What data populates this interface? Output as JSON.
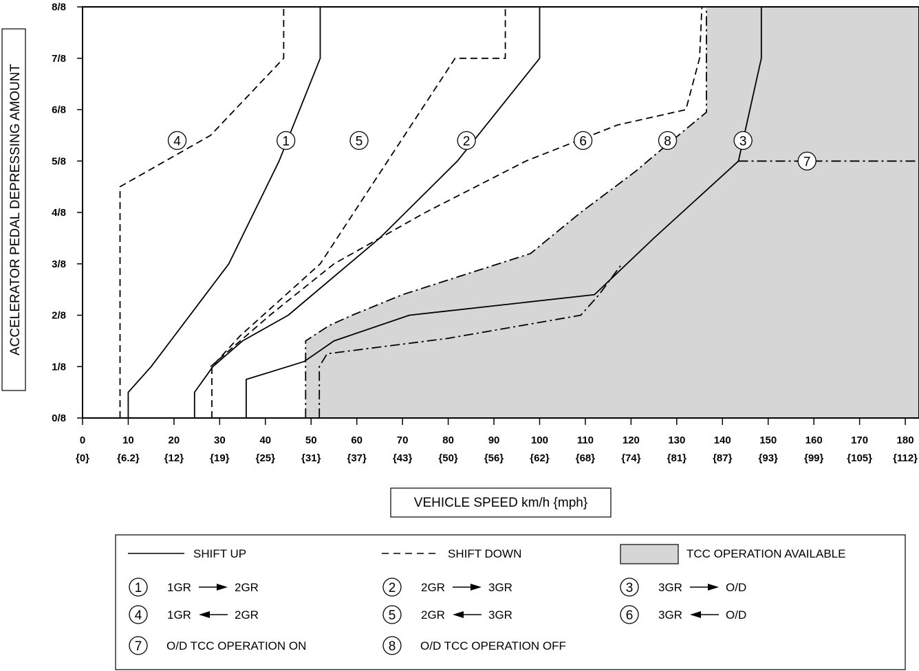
{
  "chart_data": {
    "type": "line",
    "title": "",
    "xlabel": "VEHICLE SPEED  km/h {mph}",
    "ylabel": "ACCELERATOR PEDAL DEPRESSING AMOUNT",
    "xlim": [
      0,
      183
    ],
    "ylim": [
      0,
      8
    ],
    "x_ticks": [
      0,
      10,
      20,
      30,
      40,
      50,
      60,
      70,
      80,
      90,
      100,
      110,
      120,
      130,
      140,
      150,
      160,
      170,
      180
    ],
    "x_tick_labels": [
      "0",
      "10",
      "20",
      "30",
      "40",
      "50",
      "60",
      "70",
      "80",
      "90",
      "100",
      "110",
      "120",
      "130",
      "140",
      "150",
      "160",
      "170",
      "180"
    ],
    "x_tick_sublabels": [
      "{0}",
      "{6.2}",
      "{12}",
      "{19}",
      "{25}",
      "{31}",
      "{37}",
      "{43}",
      "{50}",
      "{56}",
      "{62}",
      "{68}",
      "{74}",
      "{81}",
      "{87}",
      "{93}",
      "{99}",
      "{105}",
      "{112}"
    ],
    "y_ticks": [
      0,
      1,
      2,
      3,
      4,
      5,
      6,
      7,
      8
    ],
    "y_tick_labels": [
      "0/8",
      "1/8",
      "2/8",
      "3/8",
      "4/8",
      "5/8",
      "6/8",
      "7/8",
      "8/8"
    ],
    "tcc_region": {
      "name": "TCC OPERATION AVAILABLE",
      "color": "#d6d6d6",
      "boundary_x": [
        48.8,
        48.8,
        54,
        59,
        70,
        98,
        109,
        121,
        129,
        136.5,
        136.5,
        183,
        183
      ],
      "boundary_y": [
        0,
        1.5,
        1.8,
        2.0,
        2.4,
        3.2,
        4.0,
        4.8,
        5.4,
        5.95,
        8,
        8,
        0
      ]
    },
    "series": [
      {
        "name": "1GR → 2GR",
        "label": "1",
        "style": "solid",
        "x": [
          10,
          10,
          15,
          32,
          43,
          52,
          52
        ],
        "y": [
          0,
          0.5,
          1,
          3,
          5,
          7,
          8
        ],
        "marker_at": [
          44.5,
          5.4
        ]
      },
      {
        "name": "2GR → 3GR",
        "label": "2",
        "style": "solid",
        "x": [
          24.5,
          24.5,
          28.5,
          35,
          45,
          65,
          82,
          100,
          100
        ],
        "y": [
          0,
          0.5,
          1,
          1.5,
          2,
          3.5,
          5,
          7,
          8
        ],
        "marker_at": [
          84,
          5.4
        ]
      },
      {
        "name": "3GR → O/D",
        "label": "3",
        "style": "solid",
        "x": [
          35.8,
          35.8,
          48.5,
          55,
          71.5,
          112,
          125,
          143.5,
          148.5,
          148.5
        ],
        "y": [
          0,
          0.75,
          1.1,
          1.5,
          2.0,
          2.4,
          3.5,
          5.0,
          7,
          8
        ],
        "marker_at": [
          144.5,
          5.4
        ]
      },
      {
        "name": "1GR ← 2GR",
        "label": "4",
        "style": "dashed",
        "x": [
          8.2,
          8.2,
          8.2,
          28,
          44,
          44
        ],
        "y": [
          0,
          2,
          4.5,
          5.5,
          7,
          8
        ],
        "marker_at": [
          20.7,
          5.4
        ]
      },
      {
        "name": "2GR ← 3GR",
        "label": "5",
        "style": "dashed",
        "x": [
          28.3,
          28.3,
          34.5,
          52,
          81.5,
          92.5,
          92.5
        ],
        "y": [
          0,
          1,
          1.6,
          3,
          7,
          7,
          8
        ],
        "marker_at": [
          60.5,
          5.4
        ]
      },
      {
        "name": "3GR ← O/D",
        "label": "6",
        "style": "dashed",
        "x": [
          28,
          41,
          55,
          75,
          97,
          117,
          132,
          135,
          135.5,
          135.5
        ],
        "y": [
          1,
          2,
          3,
          4,
          5,
          5.7,
          6,
          7,
          8,
          8
        ],
        "marker_at": [
          109.5,
          5.4
        ]
      },
      {
        "name": "O/D TCC OPERATION ON",
        "label": "7",
        "style": "dashdot",
        "x": [
          143.5,
          183
        ],
        "y": [
          5.0,
          5.0
        ],
        "marker_at": [
          158.5,
          5.0
        ]
      },
      {
        "name": "O/D TCC OPERATION OFF",
        "label": "8",
        "style": "dashdot",
        "x": [
          48.8,
          48.8,
          54,
          59,
          70,
          98,
          109,
          121,
          129,
          136.5,
          136.5
        ],
        "y": [
          0,
          1.5,
          1.8,
          2.0,
          2.4,
          3.2,
          4.0,
          4.8,
          5.4,
          5.95,
          8
        ],
        "marker_at": [
          128,
          5.4
        ]
      },
      {
        "name": "O/D TCC OPERATION OFF (lower)",
        "label": "",
        "style": "dashdot",
        "x": [
          51.8,
          51.8,
          53.5,
          80,
          109,
          113,
          118
        ],
        "y": [
          0,
          1.0,
          1.25,
          1.55,
          2.0,
          2.4,
          3.0
        ]
      }
    ]
  },
  "legend": {
    "shift_up": "SHIFT UP",
    "shift_down": "SHIFT DOWN",
    "tcc_available": "TCC OPERATION AVAILABLE",
    "items": [
      {
        "num": "1",
        "from": "1GR",
        "to": "2GR",
        "direction": "right"
      },
      {
        "num": "2",
        "from": "2GR",
        "to": "3GR",
        "direction": "right"
      },
      {
        "num": "3",
        "from": "3GR",
        "to": "O/D",
        "direction": "right"
      },
      {
        "num": "4",
        "from": "1GR",
        "to": "2GR",
        "direction": "left"
      },
      {
        "num": "5",
        "from": "2GR",
        "to": "3GR",
        "direction": "left"
      },
      {
        "num": "6",
        "from": "3GR",
        "to": "O/D",
        "direction": "left"
      },
      {
        "num": "7",
        "text": "O/D TCC OPERATION ON"
      },
      {
        "num": "8",
        "text": "O/D TCC OPERATION OFF"
      }
    ]
  }
}
